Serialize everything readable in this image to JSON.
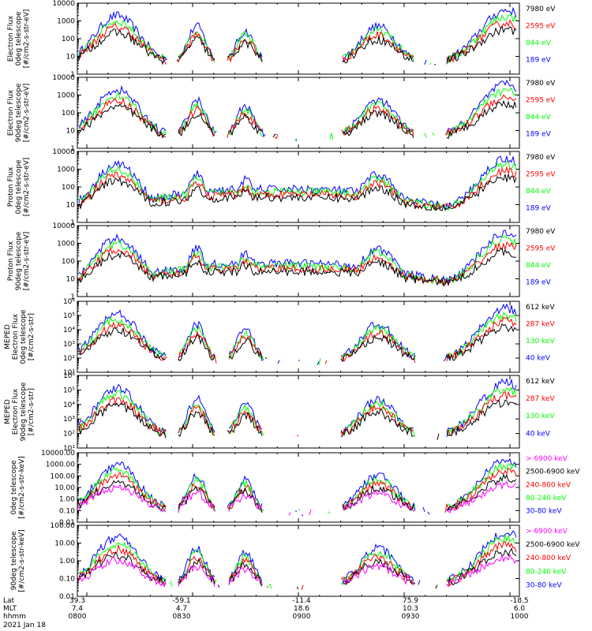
{
  "chart_data": [
    {
      "type": "line",
      "ylabel": [
        "Electron Flux",
        "0deg telescope",
        "[#/cm2-s-str-eV]"
      ],
      "y_scale": "log",
      "ylim": [
        1,
        10000
      ],
      "yticks": [
        "1",
        "10",
        "100",
        "1000",
        "10000"
      ],
      "series": [
        {
          "name": "7980 eV",
          "color": "#000000"
        },
        {
          "name": "2595 eV",
          "color": "#ff0000"
        },
        {
          "name": "844 eV",
          "color": "#00ff00"
        },
        {
          "name": "189 eV",
          "color": "#0000ff"
        }
      ]
    },
    {
      "type": "line",
      "ylabel": [
        "Electron Flux",
        "90deg telescope",
        "[#/cm2-s-str-eV]"
      ],
      "y_scale": "log",
      "ylim": [
        1,
        10000
      ],
      "yticks": [
        "1",
        "10",
        "100",
        "1000",
        "10000"
      ],
      "series": [
        {
          "name": "7980 eV",
          "color": "#000000"
        },
        {
          "name": "2595 eV",
          "color": "#ff0000"
        },
        {
          "name": "844 eV",
          "color": "#00ff00"
        },
        {
          "name": "189 eV",
          "color": "#0000ff"
        }
      ]
    },
    {
      "type": "line",
      "ylabel": [
        "Proton Flux",
        "0deg telescope",
        "[#/cm2-s-str-eV]"
      ],
      "y_scale": "log",
      "ylim": [
        1,
        10000
      ],
      "yticks": [
        "1",
        "10",
        "100",
        "1000",
        "10000"
      ],
      "series": [
        {
          "name": "7980 eV",
          "color": "#000000"
        },
        {
          "name": "2595 eV",
          "color": "#ff0000"
        },
        {
          "name": "844 eV",
          "color": "#00ff00"
        },
        {
          "name": "189 eV",
          "color": "#0000ff"
        }
      ]
    },
    {
      "type": "line",
      "ylabel": [
        "Proton Flux",
        "90deg telescope",
        "[#/cm2-s-str-eV]"
      ],
      "y_scale": "log",
      "ylim": [
        1,
        10000
      ],
      "yticks": [
        "1",
        "10",
        "100",
        "1000",
        "10000"
      ],
      "series": [
        {
          "name": "7980 eV",
          "color": "#000000"
        },
        {
          "name": "2595 eV",
          "color": "#ff0000"
        },
        {
          "name": "844 eV",
          "color": "#00ff00"
        },
        {
          "name": "189 eV",
          "color": "#0000ff"
        }
      ]
    },
    {
      "type": "line",
      "ylabel": [
        "MEPED",
        "Electron Flux",
        "0deg telescope",
        "[#/cm2-s-str]"
      ],
      "y_scale": "log",
      "ylim": [
        10,
        1000000
      ],
      "yticks": [
        "10¹",
        "10²",
        "10³",
        "10⁴",
        "10⁵",
        "10⁶"
      ],
      "series": [
        {
          "name": "612 keV",
          "color": "#000000"
        },
        {
          "name": "287 keV",
          "color": "#ff0000"
        },
        {
          "name": "130 keV",
          "color": "#00ff00"
        },
        {
          "name": "40 keV",
          "color": "#0000ff"
        }
      ]
    },
    {
      "type": "line",
      "ylabel": [
        "MEPED",
        "Electron Flux",
        "90deg telescope",
        "[#/cm2-s-str]"
      ],
      "y_scale": "log",
      "ylim": [
        10,
        1000000
      ],
      "yticks": [
        "10¹",
        "10²",
        "10³",
        "10⁴",
        "10⁵",
        "10⁶"
      ],
      "series": [
        {
          "name": "612 keV",
          "color": "#000000"
        },
        {
          "name": "287 keV",
          "color": "#ff0000"
        },
        {
          "name": "130 keV",
          "color": "#00ff00"
        },
        {
          "name": "40 keV",
          "color": "#0000ff"
        }
      ]
    },
    {
      "type": "line",
      "ylabel": [
        "0deg telescope",
        "[#/cm2-s-str-keV]"
      ],
      "y_scale": "log",
      "ylim": [
        0.01,
        10000
      ],
      "yticks": [
        "0.01",
        "0.10",
        "1.00",
        "10.00",
        "100.00",
        "1000.00",
        "10000.00"
      ],
      "series": [
        {
          "name": "> 6900 keV",
          "color": "#ff00ff"
        },
        {
          "name": "2500-6900 keV",
          "color": "#000000"
        },
        {
          "name": "240-800 keV",
          "color": "#ff0000"
        },
        {
          "name": "80-240 keV",
          "color": "#00ff00"
        },
        {
          "name": "30-80 keV",
          "color": "#0000ff"
        }
      ]
    },
    {
      "type": "line",
      "ylabel": [
        "90deg telescope",
        "[#/cm2-s-str-keV]"
      ],
      "y_scale": "log",
      "ylim": [
        0.01,
        1000
      ],
      "yticks": [
        "0.01",
        "0.10",
        "1.00",
        "10.00",
        "100.00"
      ],
      "series": [
        {
          "name": "> 6900 keV",
          "color": "#ff00ff"
        },
        {
          "name": "2500-6900 keV",
          "color": "#000000"
        },
        {
          "name": "240-800 keV",
          "color": "#ff0000"
        },
        {
          "name": "80-240 keV",
          "color": "#00ff00"
        },
        {
          "name": "30-80 keV",
          "color": "#0000ff"
        }
      ]
    }
  ],
  "xaxis": {
    "row_labels": [
      "Lat",
      "MLT",
      "hhmm"
    ],
    "ticks": [
      {
        "lat": "39.3",
        "mlt": "7.4",
        "hhmm": "0800"
      },
      {
        "lat": "-59.1",
        "mlt": "4.7",
        "hhmm": "0830"
      },
      {
        "lat": "-11.4",
        "mlt": "18.6",
        "hhmm": "0900"
      },
      {
        "lat": "75.9",
        "mlt": "10.3",
        "hhmm": "0930"
      },
      {
        "lat": "-18.5",
        "mlt": "6.0",
        "hhmm": "1000"
      }
    ],
    "date": "2021 Jan 18"
  }
}
